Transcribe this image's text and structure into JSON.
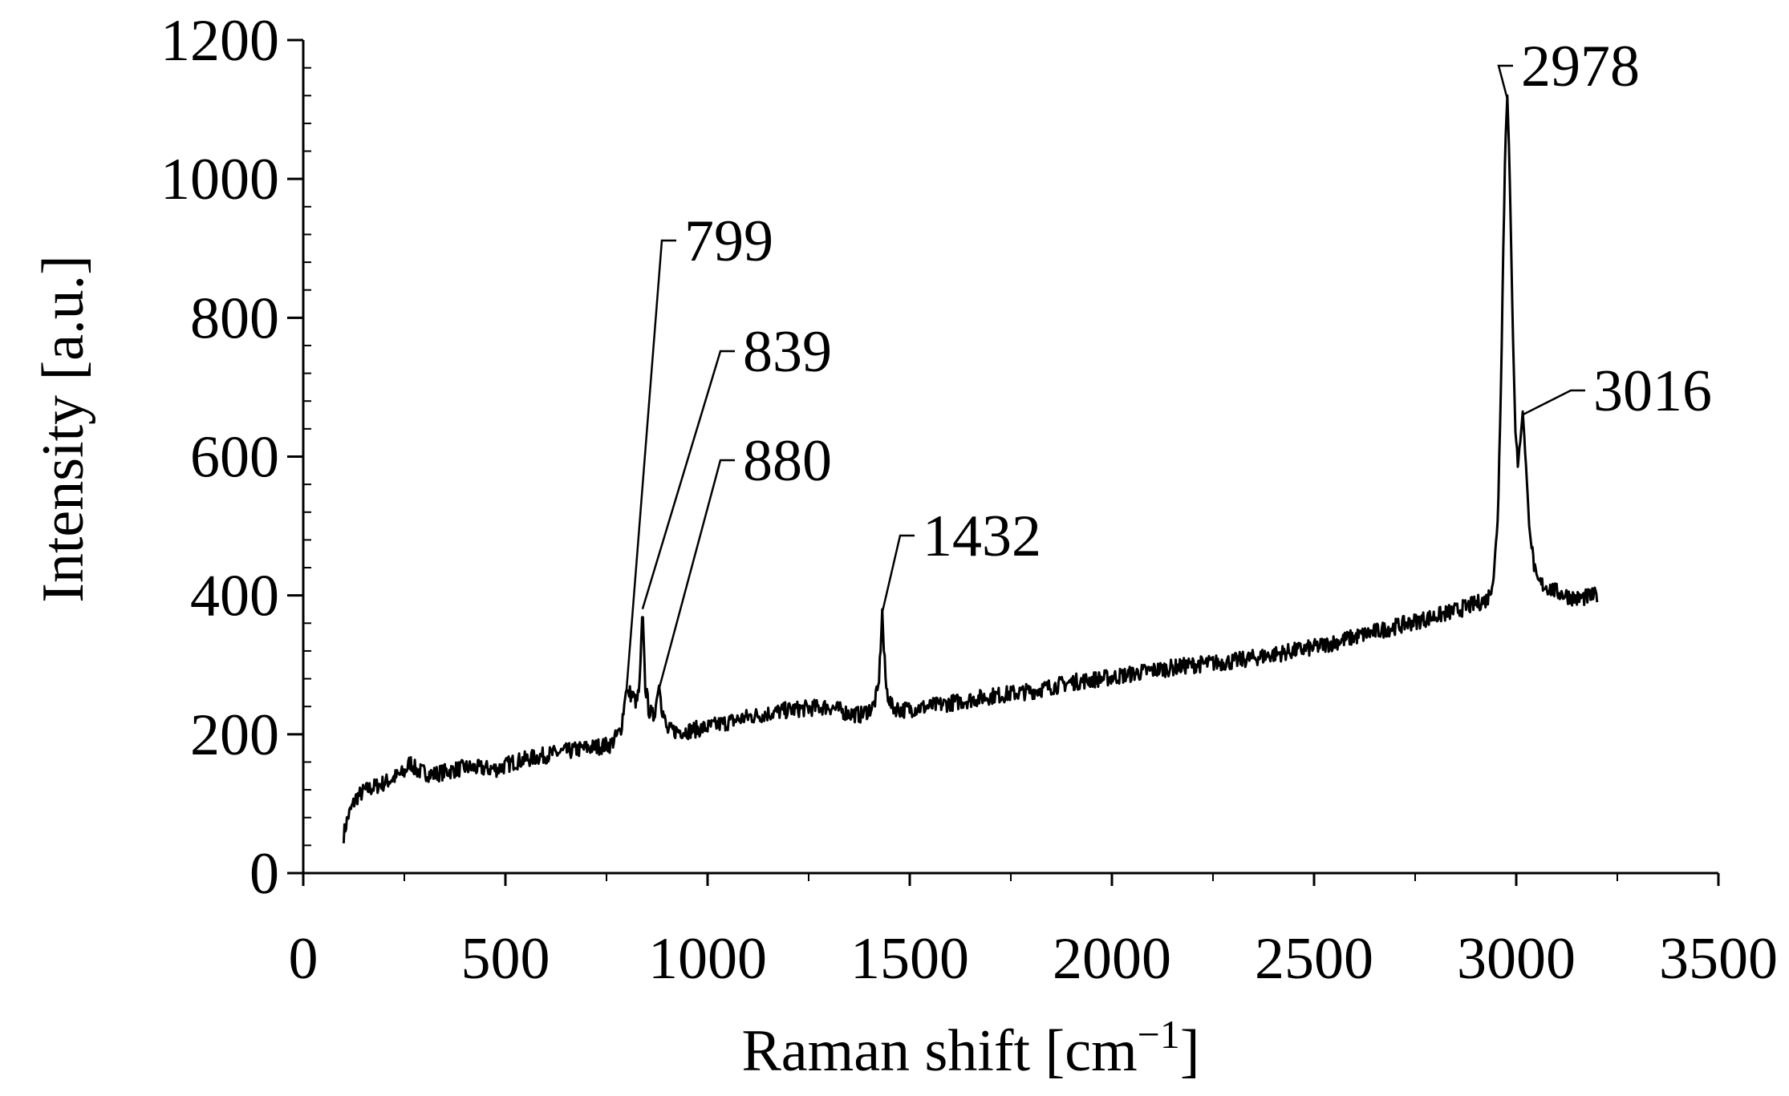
{
  "chart_data": {
    "type": "line",
    "title": "",
    "xlabel_main": "Raman shift [cm",
    "xlabel_sup": "−1",
    "xlabel_end": "]",
    "ylabel": "Intensity [a.u.]",
    "xlim": [
      0,
      3500
    ],
    "ylim": [
      0,
      1200
    ],
    "x_ticks": [
      "0",
      "500",
      "1000",
      "1500",
      "2000",
      "2500",
      "3000",
      "3500"
    ],
    "y_ticks": [
      "0",
      "200",
      "400",
      "600",
      "800",
      "1000",
      "1200"
    ],
    "grid": false,
    "legend": "none",
    "line_color": "#000000",
    "series": [
      {
        "x": [
          100,
          110,
          130,
          150,
          200,
          250,
          265,
          280,
          320,
          400,
          480,
          500,
          520,
          600,
          700,
          760,
          785,
          799,
          815,
          825,
          832,
          839,
          846,
          855,
          866,
          873,
          880,
          888,
          900,
          950,
          1000,
          1100,
          1200,
          1300,
          1350,
          1380,
          1410,
          1422,
          1428,
          1432,
          1436,
          1442,
          1455,
          1480,
          1550,
          1600,
          1700,
          1800,
          1900,
          2000,
          2100,
          2200,
          2300,
          2400,
          2500,
          2600,
          2700,
          2800,
          2850,
          2900,
          2930,
          2945,
          2955,
          2962,
          2968,
          2973,
          2978,
          2983,
          2990,
          2998,
          3004,
          3010,
          3016,
          3022,
          3030,
          3040,
          3050,
          3100,
          3150,
          3200
        ],
        "y": [
          55,
          80,
          108,
          118,
          130,
          145,
          160,
          148,
          142,
          152,
          150,
          155,
          160,
          170,
          180,
          185,
          205,
          265,
          255,
          245,
          270,
          385,
          270,
          235,
          225,
          245,
          270,
          235,
          205,
          205,
          210,
          225,
          235,
          240,
          230,
          228,
          240,
          265,
          320,
          380,
          320,
          265,
          240,
          235,
          240,
          245,
          255,
          262,
          275,
          282,
          292,
          300,
          305,
          315,
          325,
          340,
          355,
          370,
          378,
          388,
          395,
          430,
          520,
          700,
          900,
          1050,
          1120,
          1030,
          820,
          640,
          590,
          620,
          665,
          610,
          520,
          460,
          420,
          405,
          395,
          400
        ]
      }
    ],
    "annotations": [
      {
        "label": "799",
        "x": 799,
        "y": 265
      },
      {
        "label": "839",
        "x": 839,
        "y": 385
      },
      {
        "label": "880",
        "x": 880,
        "y": 270
      },
      {
        "label": "1432",
        "x": 1432,
        "y": 380
      },
      {
        "label": "2978",
        "x": 2978,
        "y": 1120
      },
      {
        "label": "3016",
        "x": 3016,
        "y": 665
      }
    ]
  }
}
